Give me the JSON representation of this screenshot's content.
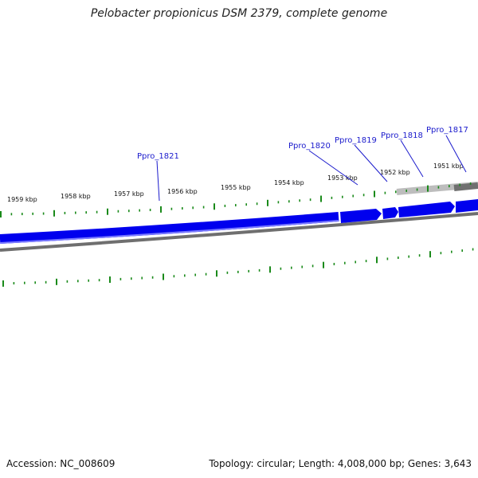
{
  "title": "Pelobacter propionicus DSM 2379, complete genome",
  "footer": {
    "accession": "Accession: NC_008609",
    "summary": "Topology: circular; Length: 4,008,000 bp; Genes: 3,643"
  },
  "colors": {
    "gene": "#0000ee",
    "gene_highlight": "#5a5aff",
    "tick": "#1a8a1a",
    "label": "#1a1acc",
    "backbone": "#6f6f6f"
  },
  "kbp_labels": [
    "1959 kbp",
    "1958 kbp",
    "1957 kbp",
    "1956 kbp",
    "1955 kbp",
    "1954 kbp",
    "1953 kbp",
    "1952 kbp",
    "1951 kbp"
  ],
  "genes": [
    "Ppro_1821",
    "Ppro_1820",
    "Ppro_1819",
    "Ppro_1818",
    "Ppro_1817"
  ]
}
